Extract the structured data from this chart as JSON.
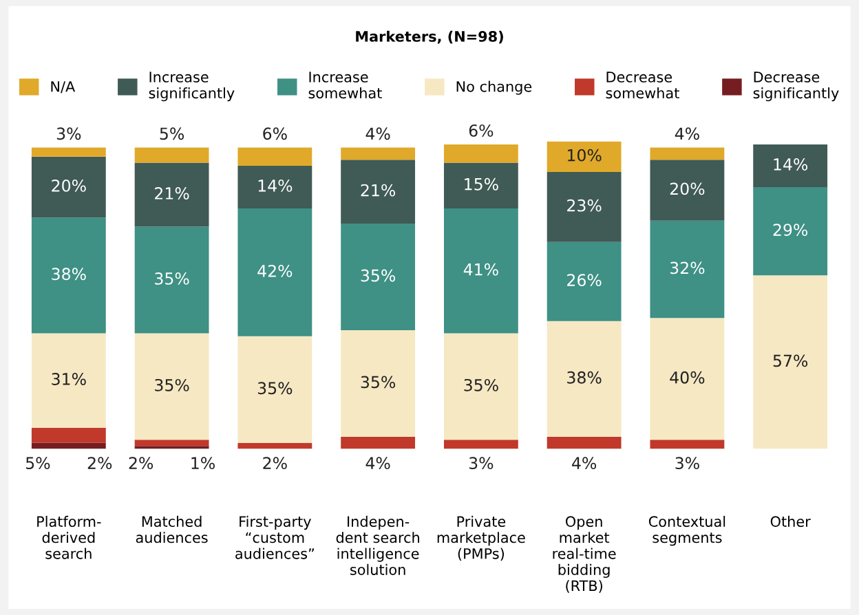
{
  "chart_data": {
    "type": "bar",
    "stacked": true,
    "title": "Marketers, (N=98)",
    "legend": "top",
    "grid": false,
    "categories": [
      "Platform-\nderived\nsearch",
      "Matched\naudiences",
      "First-party\n“custom\naudiences”",
      "Indepen-\ndent search\nintelligence\nsolution",
      "Private\nmarketplace\n(PMPs)",
      "Open\nmarket\nreal-time\nbidding\n(RTB)",
      "Contextual\nsegments",
      "Other"
    ],
    "series": [
      {
        "name": "Decrease\nsignificantly",
        "color": "#761d22",
        "values": [
          2,
          1,
          null,
          null,
          null,
          null,
          null,
          null
        ],
        "value_labels": [
          "2%",
          "1%",
          null,
          null,
          null,
          null,
          null,
          null
        ]
      },
      {
        "name": "Decrease\nsomewhat",
        "color": "#c0392b",
        "values": [
          5,
          2,
          2,
          4,
          3,
          4,
          3,
          null
        ],
        "value_labels": [
          "5%",
          "2%",
          "2%",
          "4%",
          "3%",
          "4%",
          "3%",
          null
        ]
      },
      {
        "name": "No change",
        "color": "#f6e8c3",
        "values": [
          31,
          35,
          35,
          35,
          35,
          38,
          40,
          57
        ],
        "value_labels": [
          "31%",
          "35%",
          "35%",
          "35%",
          "35%",
          "38%",
          "40%",
          "57%"
        ]
      },
      {
        "name": "Increase\nsomewhat",
        "color": "#3f9085",
        "values": [
          38,
          35,
          42,
          35,
          41,
          26,
          32,
          29
        ],
        "value_labels": [
          "38%",
          "35%",
          "42%",
          "35%",
          "41%",
          "26%",
          "32%",
          "29%"
        ]
      },
      {
        "name": "Increase\nsignificantly",
        "color": "#405a55",
        "values": [
          20,
          21,
          14,
          21,
          15,
          23,
          20,
          14
        ],
        "value_labels": [
          "20%",
          "21%",
          "14%",
          "21%",
          "15%",
          "23%",
          "20%",
          "14%"
        ]
      },
      {
        "name": "N/A",
        "color": "#e0a92a",
        "values": [
          3,
          5,
          6,
          4,
          6,
          10,
          4,
          null
        ],
        "value_labels": [
          "3%",
          "5%",
          "6%",
          "4%",
          "6%",
          "10%",
          "4%",
          null
        ]
      }
    ]
  }
}
